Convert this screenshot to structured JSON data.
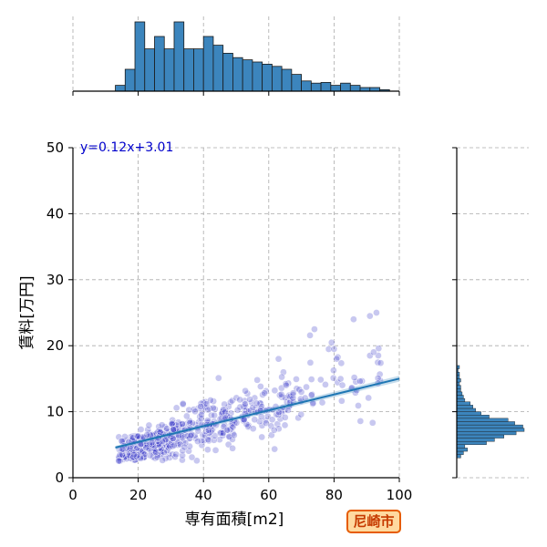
{
  "chart_data": {
    "type": "scatter",
    "xlabel": "専有面積[m2]",
    "ylabel": "賃料[万円]",
    "xlim": [
      0,
      100
    ],
    "ylim": [
      0,
      50
    ],
    "x_ticks": [
      0,
      20,
      40,
      60,
      80,
      100
    ],
    "y_ticks": [
      0,
      10,
      20,
      30,
      40,
      50
    ],
    "grid": true,
    "regression": {
      "equation": "y=0.12x+3.01",
      "slope": 0.12,
      "intercept": 3.01,
      "x_range": [
        13,
        100
      ]
    },
    "point_clusters": [
      {
        "x_min": 14,
        "x_max": 30,
        "y_center_slope": 0.16,
        "y_center_intercept": 1.2,
        "spread": 1.6,
        "count": 230
      },
      {
        "x_min": 30,
        "x_max": 50,
        "y_center_slope": 0.13,
        "y_center_intercept": 2.6,
        "spread": 2.2,
        "count": 190
      },
      {
        "x_min": 50,
        "x_max": 70,
        "y_center_slope": 0.12,
        "y_center_intercept": 3.3,
        "spread": 2.8,
        "count": 110
      },
      {
        "x_min": 70,
        "x_max": 95,
        "y_center_slope": 0.12,
        "y_center_intercept": 4.5,
        "spread": 3.4,
        "count": 45
      }
    ],
    "outliers": [
      {
        "x": 74,
        "y": 22.5
      },
      {
        "x": 86,
        "y": 24
      },
      {
        "x": 91,
        "y": 24.5
      },
      {
        "x": 93,
        "y": 25
      },
      {
        "x": 80,
        "y": 19.5
      },
      {
        "x": 63,
        "y": 18
      }
    ],
    "x_histogram": {
      "bin_edges": [
        13,
        16,
        19,
        22,
        25,
        28,
        31,
        34,
        37,
        40,
        43,
        46,
        49,
        52,
        55,
        58,
        61,
        64,
        67,
        70,
        73,
        76,
        79,
        82,
        85,
        88,
        91,
        94,
        97,
        100
      ],
      "counts": [
        8,
        30,
        95,
        58,
        75,
        58,
        95,
        58,
        58,
        75,
        63,
        52,
        46,
        43,
        40,
        37,
        34,
        30,
        23,
        14,
        11,
        12,
        8,
        11,
        8,
        5,
        5,
        2,
        0
      ]
    },
    "y_histogram": {
      "bin_edges": [
        3,
        3.5,
        4,
        4.5,
        5,
        5.5,
        6,
        6.5,
        7,
        7.5,
        8,
        8.5,
        9,
        9.5,
        10,
        10.5,
        11,
        11.5,
        12,
        12.5,
        13,
        13.5,
        14,
        14.5,
        15,
        15.5,
        16,
        16.5,
        17
      ],
      "counts": [
        3,
        5,
        8,
        6,
        22,
        28,
        35,
        44,
        50,
        49,
        43,
        38,
        24,
        18,
        14,
        12,
        10,
        6,
        5,
        4,
        3,
        3,
        2,
        3,
        2,
        2,
        1,
        2
      ]
    }
  },
  "colors": {
    "points": "#3a3ac8",
    "regression": "#1f77b4",
    "histogram_fill": "#3c85bd",
    "equation": "#0000cc",
    "badge_bg": "#ffd9a0",
    "badge_border": "#e65c00",
    "badge_text": "#c63a00"
  },
  "badge": {
    "label": "尼崎市"
  }
}
